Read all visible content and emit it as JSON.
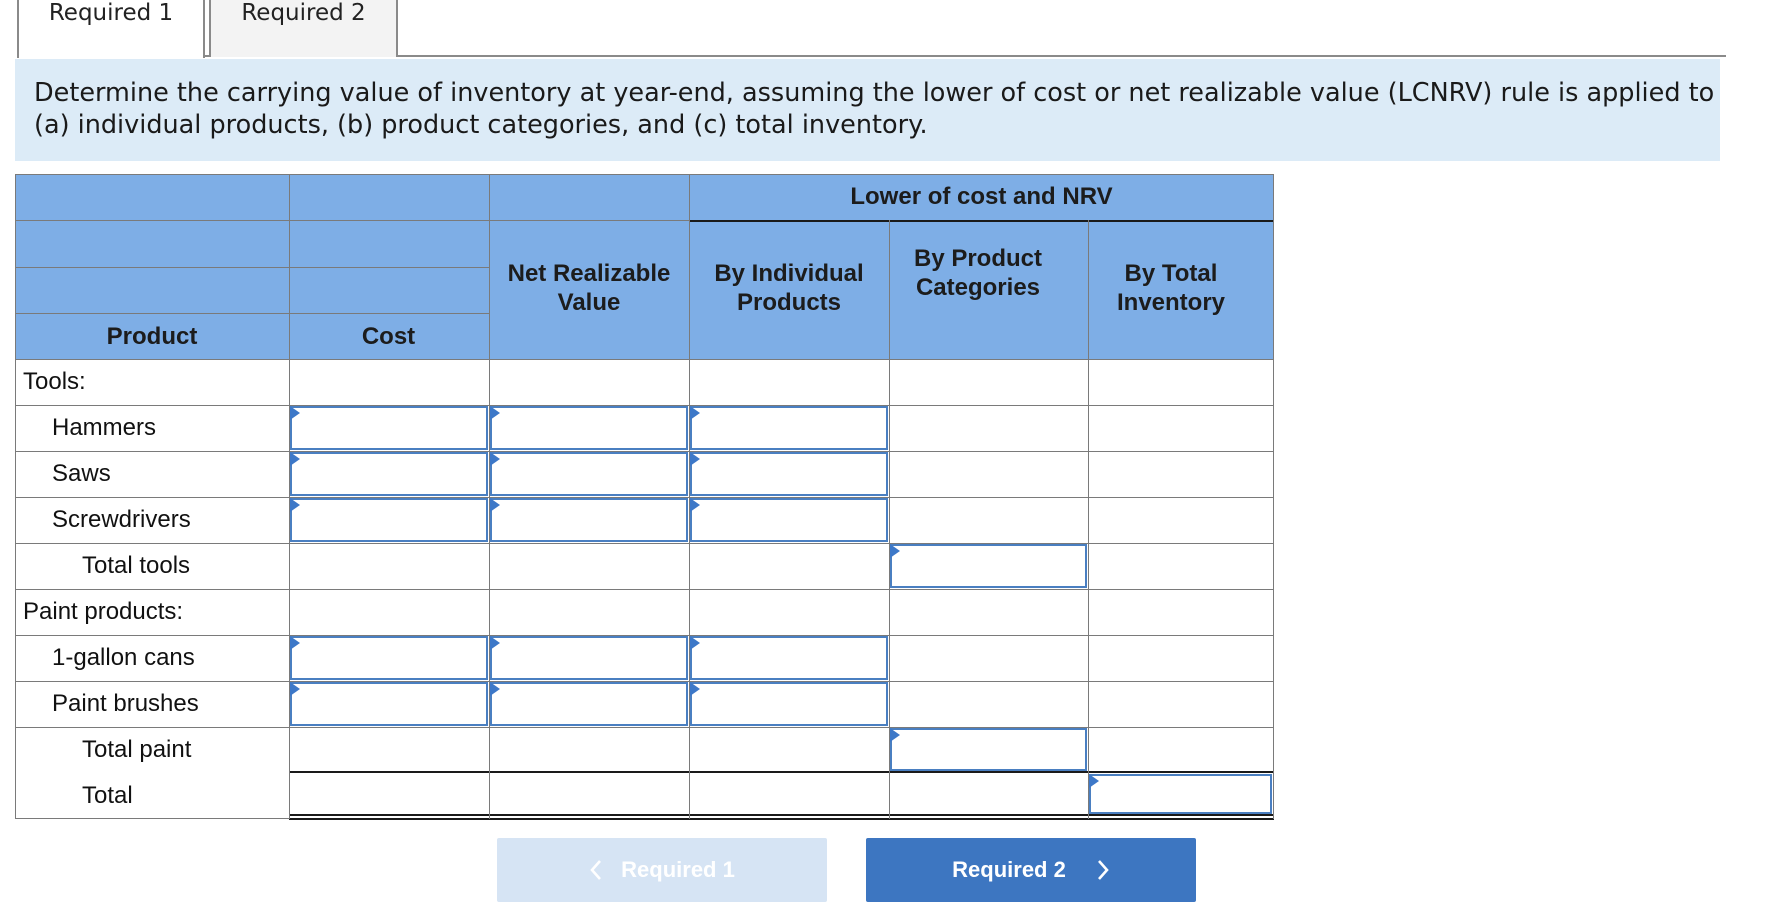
{
  "tabs": [
    {
      "label": "Required 1"
    },
    {
      "label": "Required 2"
    }
  ],
  "instructions": "Determine the carrying value of inventory at year-end, assuming the lower of cost or net realizable value (LCNRV) rule is applied to (a) individual products, (b) product categories, and (c) total inventory.",
  "table": {
    "group_header": "Lower of cost and NRV",
    "columns": {
      "product": "Product",
      "cost": "Cost",
      "nrv": "Net Realizable Value",
      "by_individual": "By Individual Products",
      "by_categories": "By Product Categories",
      "by_total": "By Total Inventory"
    },
    "rows": [
      {
        "label": "Tools:"
      },
      {
        "label": "Hammers"
      },
      {
        "label": "Saws"
      },
      {
        "label": "Screwdrivers"
      },
      {
        "label": "Total tools"
      },
      {
        "label": "Paint products:"
      },
      {
        "label": "1-gallon cans"
      },
      {
        "label": "Paint brushes"
      },
      {
        "label": "Total paint"
      },
      {
        "label": "Total"
      }
    ]
  },
  "nav": {
    "prev_label": "Required 1",
    "next_label": "Required 2",
    "prev_icon": "chevron-left-icon",
    "next_icon": "chevron-right-icon"
  }
}
